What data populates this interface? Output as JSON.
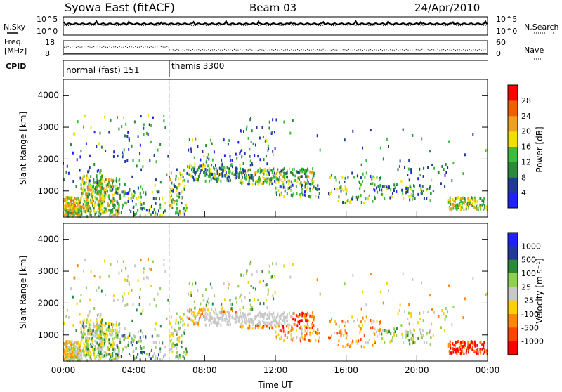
{
  "header": {
    "station": "Syowa East (fitACF)",
    "beam": "Beam 03",
    "date": "24/Apr/2010"
  },
  "top_panels": {
    "nsky_label": "N.Sky",
    "nsearch_label": "N.Search",
    "noise_ticks": [
      "10^5",
      "10^0"
    ],
    "freq_label": "Freq.",
    "freq_unit": "[MHz]",
    "freq_ticks": [
      "18",
      "8"
    ],
    "nave_label": "Nave",
    "nave_ticks": [
      "60",
      "0"
    ],
    "cpid_label": "CPID",
    "cpid_segments": [
      {
        "name": "normal (fast) 151",
        "start_hour": 0,
        "end_hour": 6
      },
      {
        "name": "themis 3300",
        "start_hour": 6,
        "end_hour": 24
      }
    ]
  },
  "colors": {
    "power": [
      "#2020ff",
      "#203a9a",
      "#2a8a3a",
      "#3cbb3c",
      "#f0e000",
      "#f0a020",
      "#f06000",
      "#ff0000"
    ],
    "velocity": [
      "#ff0000",
      "#ff4400",
      "#ff8800",
      "#ffd000",
      "#c8c8c8",
      "#90d050",
      "#2a8a3a",
      "#203a9a",
      "#2020ff"
    ]
  },
  "chart_data": [
    {
      "type": "heatmap",
      "name": "power",
      "ylabel": "Slant Range [km]",
      "ylim": [
        180,
        4500
      ],
      "y_ticks": [
        1000,
        2000,
        3000,
        4000
      ],
      "xlim": [
        0,
        24
      ],
      "colorbar_label": "Power [dB]",
      "colorbar_ticks": [
        "4",
        "8",
        "12",
        "16",
        "20",
        "24",
        "28"
      ],
      "colorbar_range": [
        0,
        32
      ]
    },
    {
      "type": "heatmap",
      "name": "velocity",
      "ylabel": "Slant Range [km]",
      "ylim": [
        180,
        4500
      ],
      "y_ticks": [
        1000,
        2000,
        3000,
        4000
      ],
      "xlim": [
        0,
        24
      ],
      "xlabel": "Time UT",
      "x_ticks": [
        "00:00",
        "04:00",
        "08:00",
        "12:00",
        "16:00",
        "20:00",
        "00:00"
      ],
      "colorbar_label": "Velocity [m s⁻¹]",
      "colorbar_ticks": [
        "1000",
        "500",
        "100",
        "25",
        "-25",
        "-100",
        "-500",
        "-1000"
      ]
    }
  ]
}
